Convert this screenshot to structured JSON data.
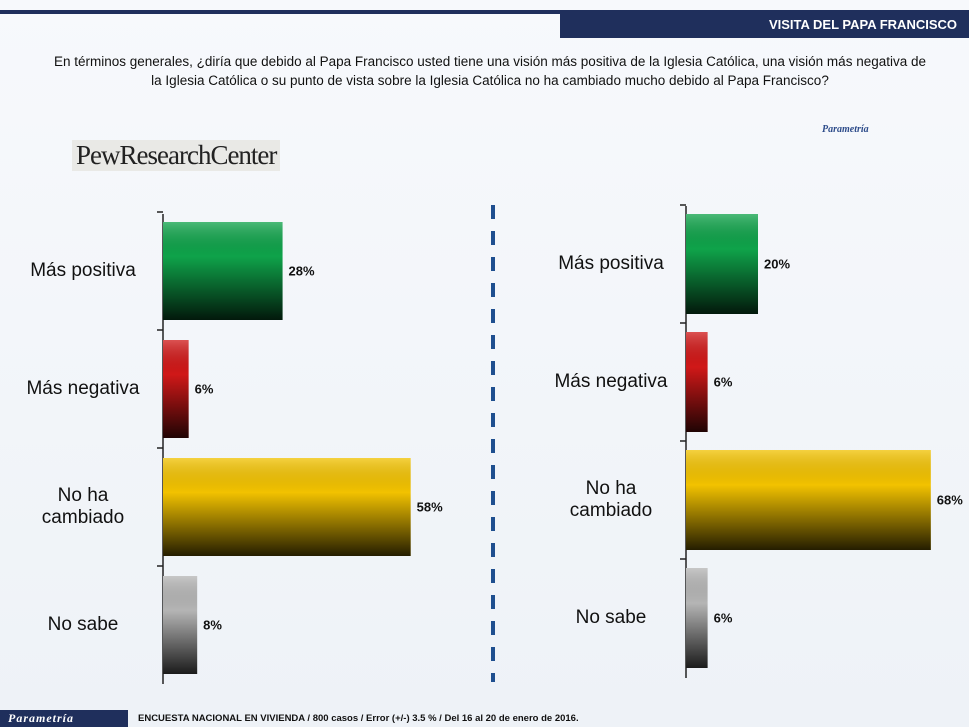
{
  "header": {
    "title": "VISITA  DEL PAPA FRANCISCO"
  },
  "question": "En términos generales, ¿diría que debido al Papa Francisco usted tiene una visión más positiva de la Iglesia Católica, una visión más negativa de la Iglesia Católica o su punto de vista sobre la Iglesia Católica no ha cambiado mucho debido al Papa Francisco?",
  "logos": {
    "left": "PewResearchCenter",
    "right": "Parametría"
  },
  "footer": {
    "brand": "Parametría",
    "note": "ENCUESTA NACIONAL EN VIVIENDA  / 800 casos / Error (+/-)  3.5 % / Del 16 al 20 de enero de 2016."
  },
  "chart_data": [
    {
      "type": "bar",
      "orientation": "horizontal",
      "categories": [
        "Más positiva",
        "Más negativa",
        "No ha cambiado",
        "No sabe"
      ],
      "values": [
        28,
        6,
        58,
        8
      ],
      "value_labels": [
        "28%",
        "6%",
        "58%",
        "8%"
      ],
      "colors": [
        "#0fa34a",
        "#d01818",
        "#f2c200",
        "#b5b5b5"
      ]
    },
    {
      "type": "bar",
      "orientation": "horizontal",
      "categories": [
        "Más positiva",
        "Más negativa",
        "No ha cambiado",
        "No sabe"
      ],
      "values": [
        20,
        6,
        68,
        6
      ],
      "value_labels": [
        "20%",
        "6%",
        "68%",
        "6%"
      ],
      "colors": [
        "#0fa34a",
        "#d01818",
        "#f2c200",
        "#b5b5b5"
      ]
    }
  ]
}
